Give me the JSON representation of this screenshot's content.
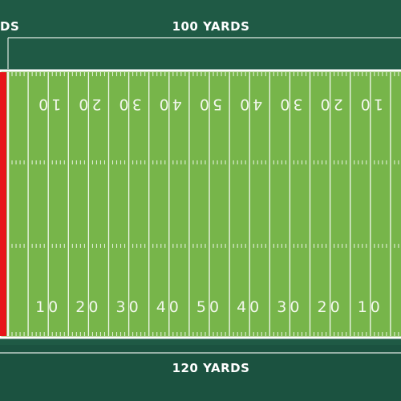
{
  "header": {
    "left_label": "DS",
    "title": "100 YARDS"
  },
  "field": {
    "top_numbers": [
      10,
      20,
      30,
      40,
      50,
      40,
      30,
      20,
      10
    ],
    "bottom_numbers": [
      10,
      20,
      30,
      40,
      50,
      40,
      30,
      20,
      10
    ]
  },
  "footer": {
    "title": "120 YARDS"
  }
}
